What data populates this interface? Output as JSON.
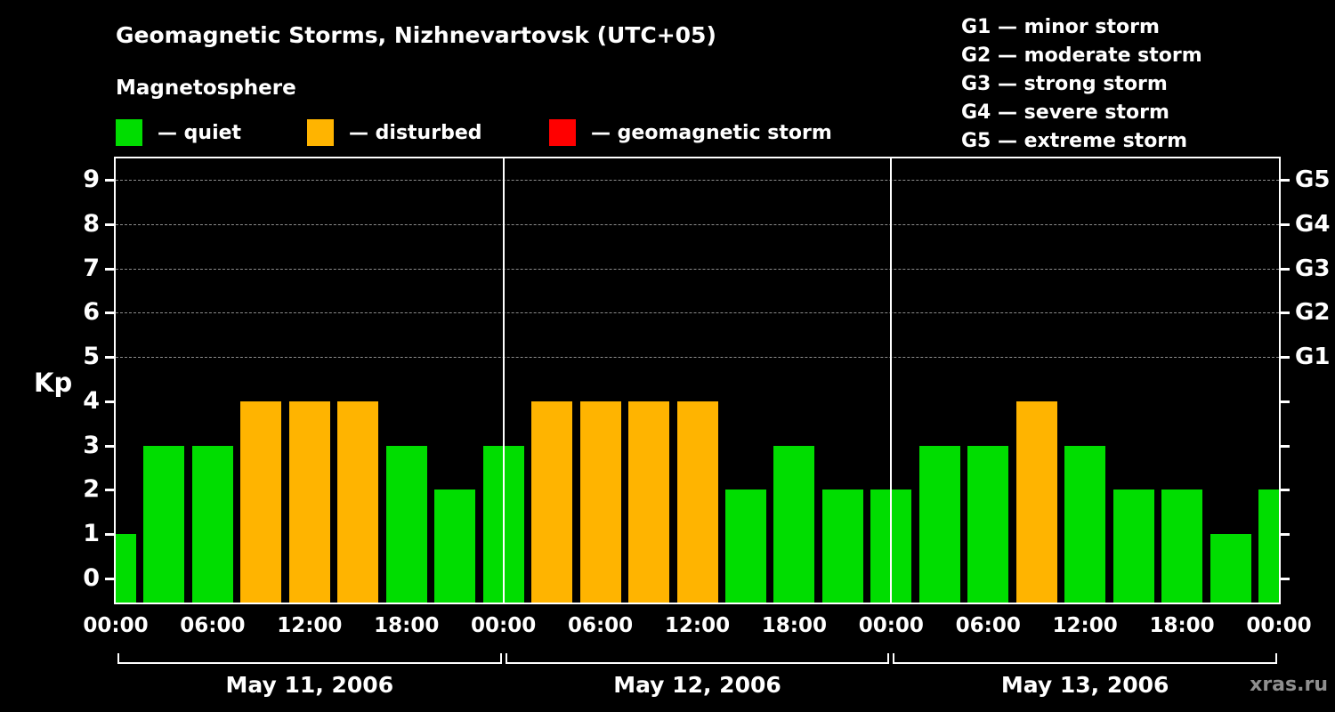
{
  "header": {
    "title": "Geomagnetic Storms, Nizhnevartovsk (UTC+05)",
    "subtitle": "Magnetosphere"
  },
  "legend": [
    {
      "key": "quiet",
      "label": "— quiet",
      "color": "#00dd00"
    },
    {
      "key": "disturbed",
      "label": "— disturbed",
      "color": "#ffb400"
    },
    {
      "key": "storm",
      "label": "— geomagnetic storm",
      "color": "#ff0000"
    }
  ],
  "g_scale": [
    "G1 — minor storm",
    "G2 — moderate storm",
    "G3 — strong storm",
    "G4 — severe storm",
    "G5 — extreme storm"
  ],
  "watermark": "xras.ru",
  "chart_data": {
    "type": "bar",
    "ylabel": "Kp",
    "ylim": [
      0,
      9
    ],
    "yticks": [
      0,
      1,
      2,
      3,
      4,
      5,
      6,
      7,
      8,
      9
    ],
    "gridline_levels": [
      5,
      6,
      7,
      8,
      9
    ],
    "right_axis": [
      {
        "value": 5,
        "label": "G1"
      },
      {
        "value": 6,
        "label": "G2"
      },
      {
        "value": 7,
        "label": "G3"
      },
      {
        "value": 8,
        "label": "G4"
      },
      {
        "value": 9,
        "label": "G5"
      }
    ],
    "x_tick_labels": [
      "00:00",
      "06:00",
      "12:00",
      "18:00",
      "00:00",
      "06:00",
      "12:00",
      "18:00",
      "00:00",
      "06:00",
      "12:00",
      "18:00",
      "00:00"
    ],
    "days": [
      {
        "date": "May 11, 2006",
        "kp_values": [
          1,
          3,
          3,
          4,
          4,
          4,
          3,
          2
        ]
      },
      {
        "date": "May 12, 2006",
        "kp_values": [
          3,
          4,
          4,
          4,
          4,
          2,
          3,
          2
        ]
      },
      {
        "date": "May 13, 2006",
        "kp_values": [
          2,
          3,
          3,
          4,
          3,
          2,
          2,
          1
        ]
      }
    ],
    "partial_trailing_value": 2,
    "colors": {
      "quiet": "#00dd00",
      "disturbed": "#ffb400",
      "storm": "#ff0000"
    },
    "color_thresholds": {
      "quiet_max": 3,
      "disturbed_max": 4
    }
  }
}
